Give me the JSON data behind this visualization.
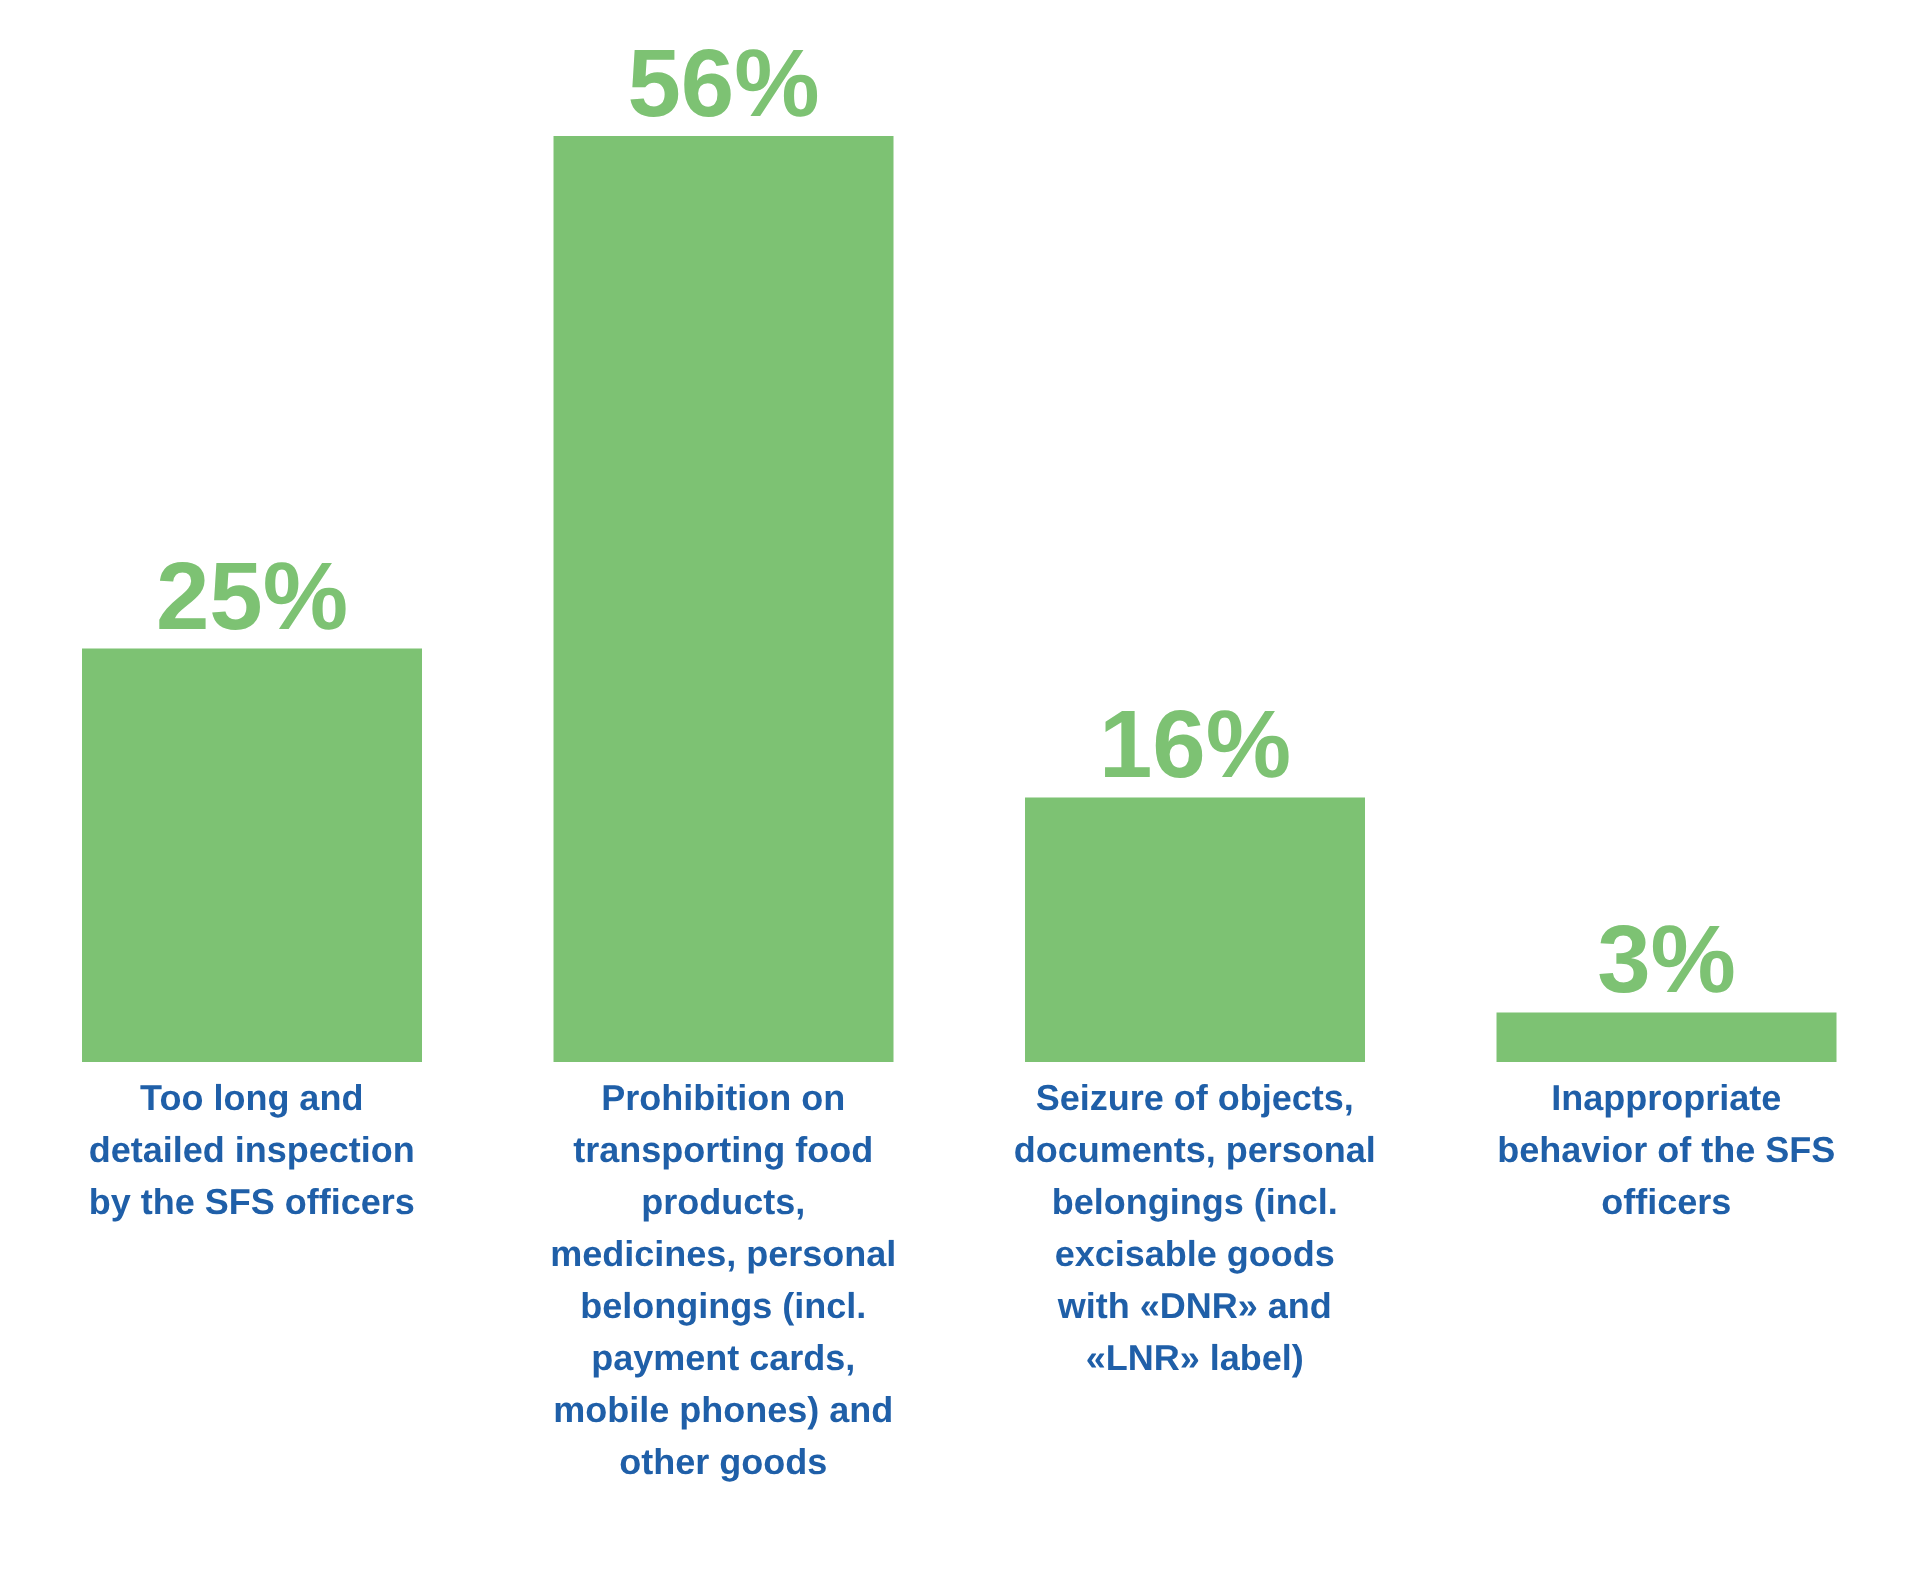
{
  "chart_data": {
    "type": "bar",
    "categories": [
      "Too long and detailed inspection by the SFS officers",
      "Prohibition on transporting food products, medicines, personal belongings (incl. payment cards, mobile phones) and other goods",
      "Seizure of objects, documents, personal belongings (incl. excisable goods with «DNR» and «LNR» label)",
      "Inappropriate behavior of the SFS officers"
    ],
    "values": [
      25,
      56,
      16,
      3
    ],
    "value_labels": [
      "25%",
      "56%",
      "16%",
      "3%"
    ],
    "color": "#7dc273",
    "grid": false,
    "legend": false
  }
}
